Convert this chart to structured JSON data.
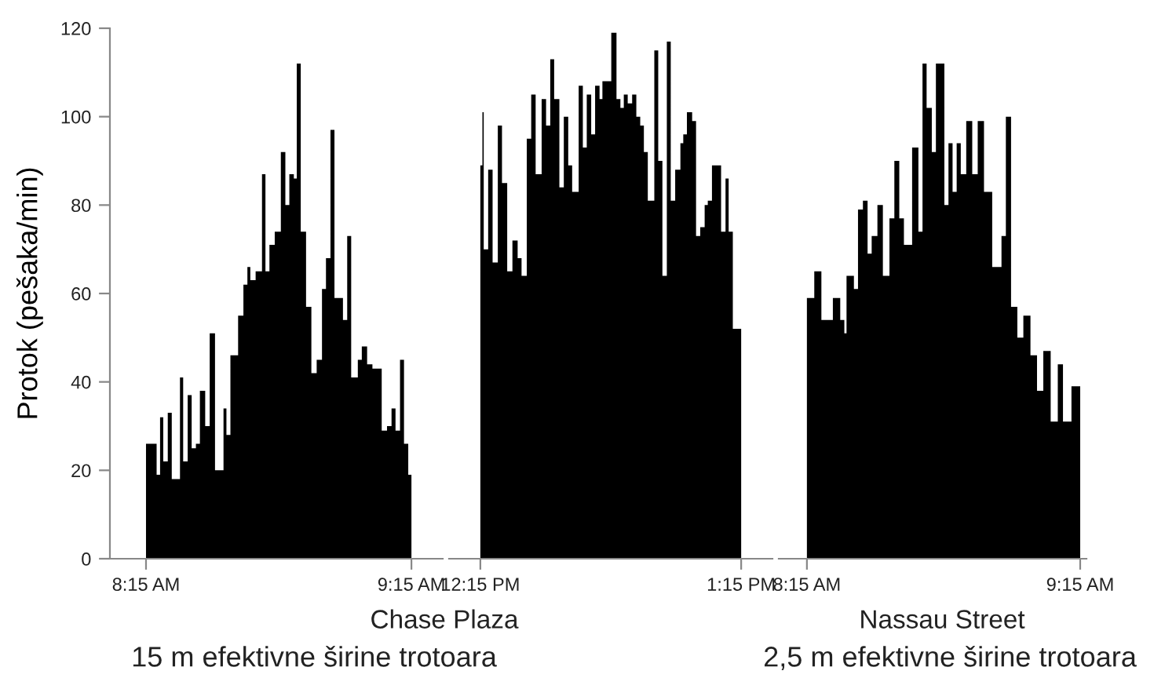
{
  "chart_data": [
    {
      "type": "area",
      "ylabel": "Protok (pešaka/min)",
      "ylim": [
        0,
        120
      ],
      "yticks": [
        0,
        20,
        40,
        60,
        80,
        100,
        120
      ],
      "xlim": [
        8.114,
        9.368
      ],
      "xticks": [
        {
          "value": 8.25,
          "label": "8:15 AM"
        },
        {
          "value": 9.25,
          "label": "9:15 AM"
        }
      ],
      "annotations": [
        "Chase Plaza",
        "15 m efektivne širine trotoara"
      ],
      "series": [
        {
          "color": "#000000",
          "x": [
            8.25,
            8.29,
            8.303,
            8.315,
            8.332,
            8.347,
            8.378,
            8.39,
            8.407,
            8.422,
            8.438,
            8.453,
            8.473,
            8.49,
            8.51,
            8.542,
            8.553,
            8.568,
            8.597,
            8.617,
            8.632,
            8.643,
            8.663,
            8.687,
            8.7,
            8.715,
            8.735,
            8.758,
            8.775,
            8.79,
            8.807,
            8.818,
            8.833,
            8.853,
            8.873,
            8.893,
            8.913,
            8.928,
            8.945,
            8.96,
            8.977,
            8.992,
            9.008,
            9.023,
            9.048,
            9.063,
            9.083,
            9.103,
            9.138,
            9.158,
            9.175,
            9.19,
            9.207,
            9.222,
            9.238,
            9.25
          ],
          "values": [
            26,
            19,
            32,
            22,
            33,
            18,
            41,
            22,
            37,
            25,
            26,
            38,
            30,
            51,
            20,
            34,
            28,
            46,
            55,
            62,
            66,
            63,
            65,
            87,
            65,
            71,
            74,
            92,
            80,
            87,
            86,
            112,
            74,
            57,
            42,
            45,
            61,
            68,
            97,
            59,
            59,
            54,
            73,
            41,
            45,
            48,
            44,
            43,
            29,
            30,
            34,
            29,
            45,
            26,
            19,
            19
          ]
        }
      ]
    },
    {
      "type": "area",
      "ylim": [
        0,
        120
      ],
      "tick_labels": "x",
      "xlim": [
        12.13,
        13.37
      ],
      "xticks": [
        {
          "value": 12.25,
          "label": "12:15 PM"
        },
        {
          "value": 13.25,
          "label": "1:15 PM"
        }
      ],
      "series": [
        {
          "color": "#000000",
          "x": [
            12.25,
            12.258,
            12.263,
            12.28,
            12.297,
            12.317,
            12.333,
            12.353,
            12.373,
            12.393,
            12.408,
            12.428,
            12.445,
            12.462,
            12.485,
            12.502,
            12.518,
            12.533,
            12.553,
            12.57,
            12.587,
            12.602,
            12.627,
            12.643,
            12.658,
            12.675,
            12.69,
            12.707,
            12.718,
            12.752,
            12.772,
            12.787,
            12.8,
            12.815,
            12.832,
            12.848,
            12.863,
            12.877,
            12.892,
            12.917,
            12.932,
            12.948,
            12.965,
            12.98,
            12.997,
            13.017,
            13.028,
            13.042,
            13.062,
            13.077,
            13.093,
            13.11,
            13.122,
            13.138,
            13.153,
            13.173,
            13.19,
            13.202,
            13.218,
            13.25
          ],
          "values": [
            89,
            101,
            70,
            88,
            67,
            98,
            85,
            65,
            72,
            68,
            64,
            95,
            105,
            87,
            104,
            98,
            113,
            104,
            84,
            100,
            89,
            83,
            107,
            93,
            105,
            96,
            107,
            104,
            108,
            119,
            104,
            102,
            105,
            103,
            105,
            100,
            98,
            92,
            81,
            115,
            90,
            64,
            117,
            81,
            88,
            94,
            96,
            101,
            99,
            73,
            75,
            80,
            81,
            89,
            89,
            74,
            86,
            74,
            52,
            52
          ]
        }
      ]
    },
    {
      "type": "area",
      "ylim": [
        0,
        120
      ],
      "tick_labels": "x",
      "xlim": [
        8.147,
        9.273
      ],
      "xticks": [
        {
          "value": 8.25,
          "label": "8:15 AM"
        },
        {
          "value": 9.25,
          "label": "9:15 AM"
        }
      ],
      "annotations": [
        "Nassau Street",
        "2,5 m efektivne širine trotoara"
      ],
      "series": [
        {
          "color": "#000000",
          "x": [
            8.25,
            8.277,
            8.303,
            8.318,
            8.345,
            8.372,
            8.387,
            8.395,
            8.422,
            8.437,
            8.455,
            8.472,
            8.487,
            8.508,
            8.528,
            8.552,
            8.57,
            8.588,
            8.605,
            8.635,
            8.658,
            8.673,
            8.688,
            8.707,
            8.722,
            8.738,
            8.753,
            8.768,
            8.783,
            8.798,
            8.813,
            8.833,
            8.855,
            8.875,
            8.898,
            8.928,
            8.962,
            8.978,
            8.997,
            9.02,
            9.042,
            9.068,
            9.092,
            9.115,
            9.142,
            9.168,
            9.187,
            9.218,
            9.25
          ],
          "values": [
            59,
            65,
            54,
            54,
            59,
            54,
            51,
            64,
            61,
            79,
            81,
            69,
            73,
            80,
            64,
            77,
            90,
            77,
            71,
            93,
            74,
            112,
            102,
            92,
            112,
            112,
            80,
            94,
            83,
            94,
            87,
            99,
            87,
            99,
            83,
            66,
            73,
            100,
            57,
            50,
            55,
            46,
            38,
            47,
            31,
            44,
            31,
            39,
            39
          ]
        }
      ]
    }
  ]
}
